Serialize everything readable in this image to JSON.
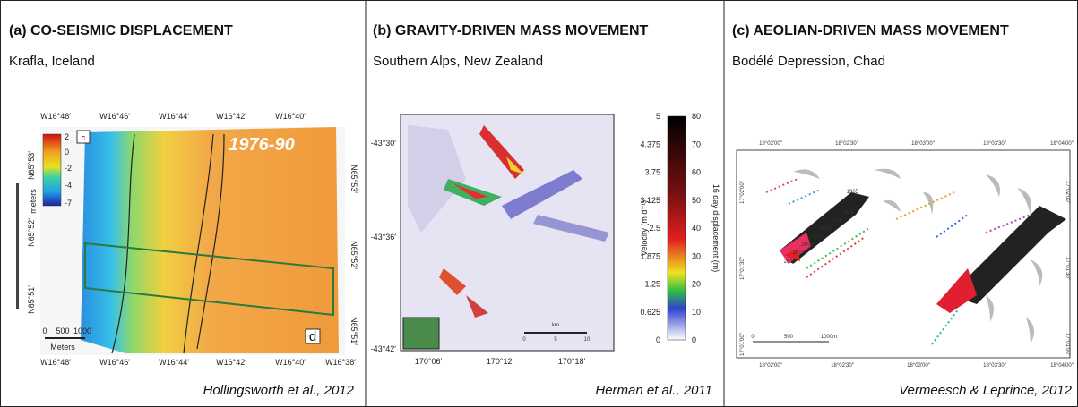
{
  "panels": [
    {
      "title": "(a) CO-SEISMIC DISPLACEMENT",
      "location": "Krafla, Iceland",
      "credit": "Hollingsworth et al., 2012",
      "top_labels": [
        "W16°48′",
        "W16°46′",
        "W16°44′",
        "W16°42′",
        "W16°40′"
      ],
      "bottom_labels": [
        "W16°48′",
        "W16°46′",
        "W16°44′",
        "W16°42′",
        "W16°40′",
        "W16°38′"
      ],
      "left_labels": [
        "N65°53′",
        "N65°52′",
        "N65°51′"
      ],
      "right_labels": [
        "N65°53′",
        "N65°52′",
        "N65°51′"
      ],
      "colorbar_labels": [
        "2",
        "0",
        "-2",
        "-4",
        "-7"
      ],
      "colorbar_unit": "meters",
      "inset_letter": "c",
      "box_letter": "d",
      "period": "1976-90",
      "scale_labels": [
        "0",
        "500",
        "1000"
      ],
      "scale_unit": "Meters"
    },
    {
      "title": "(b) GRAVITY-DRIVEN MASS MOVEMENT",
      "location": "Southern Alps, New Zealand",
      "credit": "Herman et al., 2011",
      "left_labels": [
        "-43°30′",
        "-43°36′",
        "-43°42′"
      ],
      "bottom_labels": [
        "170°06′",
        "170°12′",
        "170°18′"
      ],
      "velocity_labels": [
        "5",
        "4.375",
        "3.75",
        "3.125",
        "2.5",
        "1.875",
        "1.25",
        "0.625",
        "0"
      ],
      "displacement_labels": [
        "80",
        "70",
        "60",
        "50",
        "40",
        "30",
        "20",
        "10",
        "0"
      ],
      "velocity_axis": "Velocity (m d⁻¹)",
      "displacement_axis": "16 day displacement (m)",
      "scale_unit": "km",
      "scale_labels": [
        "0",
        "5",
        "10"
      ]
    },
    {
      "title": "(c) AEOLIAN-DRIVEN MASS MOVEMENT",
      "location": "Bodélé Depression, Chad",
      "credit": "Vermeesch & Leprince, 2012",
      "top_labels": [
        "18°02′00″",
        "18°02′30″",
        "18°03′00″",
        "18°03′30″",
        "18°04′00″"
      ],
      "bottom_labels": [
        "18°02′00″",
        "18°02′30″",
        "18°03′00″",
        "18°03′30″",
        "18°04′00″"
      ],
      "left_labels": [
        "17°02′00″",
        "17°01′30″",
        "17°01′00″"
      ],
      "right_labels": [
        "17°02′00″",
        "17°01′30″",
        "17°01′00″"
      ],
      "years": [
        "1965",
        "1984",
        "1990",
        "1996",
        "2003",
        "2003",
        "2007",
        "2010"
      ],
      "scale_labels": [
        "0",
        "500",
        "1000m"
      ]
    }
  ]
}
